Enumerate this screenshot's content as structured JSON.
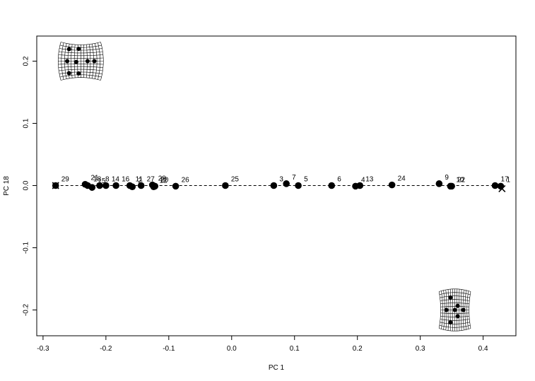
{
  "chart_data": {
    "type": "scatter",
    "title": "",
    "xlabel": "PC 1",
    "ylabel": "PC 18",
    "xlim": [
      -0.3,
      0.45
    ],
    "ylim": [
      -0.24,
      0.24
    ],
    "x_ticks": [
      "-0.3",
      "-0.2",
      "-0.1",
      "0.0",
      "0.1",
      "0.2",
      "0.3",
      "0.4"
    ],
    "y_ticks": [
      "-0.2",
      "-0.1",
      "0.0",
      "0.1",
      "0.2"
    ],
    "grid": false,
    "reference_line": {
      "y": 0,
      "style": "dashed",
      "x_from": -0.28,
      "x_to": 0.43
    },
    "extremes": [
      {
        "marker": "X",
        "x": -0.28,
        "y": 0.0
      },
      {
        "marker": "X",
        "x": 0.43,
        "y": -0.005
      }
    ],
    "warp_grids": [
      {
        "position": "top-left",
        "x": -0.24,
        "y": 0.2
      },
      {
        "position": "bottom-right",
        "x": 0.355,
        "y": -0.2
      }
    ],
    "points": [
      {
        "label": "29",
        "x": -0.28,
        "y": 0.0
      },
      {
        "label": "21",
        "x": -0.233,
        "y": 0.002
      },
      {
        "label": "18",
        "x": -0.229,
        "y": 0.0
      },
      {
        "label": "15",
        "x": -0.222,
        "y": -0.003
      },
      {
        "label": "8",
        "x": -0.21,
        "y": 0.0
      },
      {
        "label": "14",
        "x": -0.2,
        "y": 0.0
      },
      {
        "label": "16",
        "x": -0.184,
        "y": 0.0
      },
      {
        "label": "11",
        "x": -0.162,
        "y": 0.0
      },
      {
        "label": "2",
        "x": -0.158,
        "y": -0.002
      },
      {
        "label": "27",
        "x": -0.144,
        "y": 0.0
      },
      {
        "label": "28",
        "x": -0.126,
        "y": 0.001
      },
      {
        "label": "12",
        "x": -0.124,
        "y": -0.002
      },
      {
        "label": "20",
        "x": -0.122,
        "y": -0.001
      },
      {
        "label": "26",
        "x": -0.089,
        "y": -0.001
      },
      {
        "label": "25",
        "x": -0.01,
        "y": 0.0
      },
      {
        "label": "3",
        "x": 0.067,
        "y": 0.0
      },
      {
        "label": "7",
        "x": 0.087,
        "y": 0.003
      },
      {
        "label": "5",
        "x": 0.106,
        "y": 0.0
      },
      {
        "label": "6",
        "x": 0.159,
        "y": 0.0
      },
      {
        "label": "4",
        "x": 0.197,
        "y": -0.001
      },
      {
        "label": "13",
        "x": 0.204,
        "y": 0.0
      },
      {
        "label": "24",
        "x": 0.255,
        "y": 0.001
      },
      {
        "label": "9",
        "x": 0.33,
        "y": 0.003
      },
      {
        "label": "10",
        "x": 0.348,
        "y": -0.001
      },
      {
        "label": "22",
        "x": 0.35,
        "y": -0.001
      },
      {
        "label": "17",
        "x": 0.419,
        "y": 0.0
      },
      {
        "label": "1",
        "x": 0.428,
        "y": -0.001
      }
    ]
  },
  "colors": {
    "marker": "#000000",
    "background": "#ffffff"
  }
}
